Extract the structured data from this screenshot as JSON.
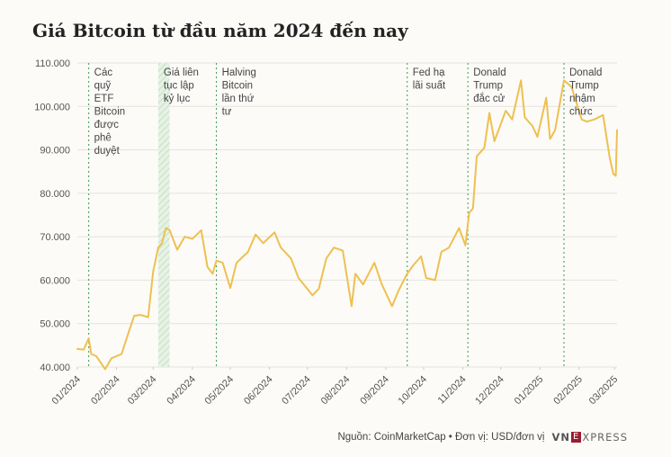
{
  "chart_data": {
    "type": "line",
    "title": "Giá Bitcoin từ đầu năm 2024 đến nay",
    "source": "Nguồn: CoinMarketCap • Đơn vị: USD/đơn vị",
    "xlabel": "",
    "ylabel": "",
    "ylim": [
      40000,
      110000
    ],
    "yticks": [
      "40.000",
      "50.000",
      "60.000",
      "70.000",
      "80.000",
      "90.000",
      "100.000",
      "110.000"
    ],
    "ytick_values": [
      40000,
      50000,
      60000,
      70000,
      80000,
      90000,
      100000,
      110000
    ],
    "xlim": [
      "2024-01-01",
      "2025-03-03"
    ],
    "xticks": [
      "01/2024",
      "02/2024",
      "03/2024",
      "04/2024",
      "05/2024",
      "06/2024",
      "07/2024",
      "08/2024",
      "09/2024",
      "10/2024",
      "11/2024",
      "12/2024",
      "01/2025",
      "02/2025",
      "03/2025"
    ],
    "xtick_dates": [
      "2024-01-01",
      "2024-02-01",
      "2024-03-01",
      "2024-04-01",
      "2024-05-01",
      "2024-06-01",
      "2024-07-01",
      "2024-08-01",
      "2024-09-01",
      "2024-10-01",
      "2024-11-01",
      "2024-12-01",
      "2025-01-01",
      "2025-02-01",
      "2025-03-01"
    ],
    "grid": true,
    "line_color": "#eec050",
    "annotation_color": "#3c9a4a",
    "series": [
      {
        "x": [
          "2024-01-01",
          "2024-01-06",
          "2024-01-10",
          "2024-01-12",
          "2024-01-16",
          "2024-01-23",
          "2024-01-28",
          "2024-02-05",
          "2024-02-10",
          "2024-02-15",
          "2024-02-20",
          "2024-02-26",
          "2024-03-01",
          "2024-03-05",
          "2024-03-08",
          "2024-03-11",
          "2024-03-14",
          "2024-03-20",
          "2024-03-26",
          "2024-04-01",
          "2024-04-08",
          "2024-04-13",
          "2024-04-17",
          "2024-04-20",
          "2024-04-25",
          "2024-05-01",
          "2024-05-06",
          "2024-05-15",
          "2024-05-21",
          "2024-05-27",
          "2024-06-05",
          "2024-06-10",
          "2024-06-18",
          "2024-06-24",
          "2024-07-05",
          "2024-07-10",
          "2024-07-16",
          "2024-07-22",
          "2024-07-29",
          "2024-08-05",
          "2024-08-08",
          "2024-08-14",
          "2024-08-23",
          "2024-08-29",
          "2024-09-06",
          "2024-09-11",
          "2024-09-18",
          "2024-09-23",
          "2024-09-29",
          "2024-10-03",
          "2024-10-10",
          "2024-10-15",
          "2024-10-21",
          "2024-10-29",
          "2024-11-03",
          "2024-11-06",
          "2024-11-09",
          "2024-11-12",
          "2024-11-18",
          "2024-11-22",
          "2024-11-26",
          "2024-12-05",
          "2024-12-10",
          "2024-12-17",
          "2024-12-20",
          "2024-12-26",
          "2024-12-30",
          "2025-01-06",
          "2025-01-09",
          "2025-01-13",
          "2025-01-20",
          "2025-01-26",
          "2025-02-03",
          "2025-02-07",
          "2025-02-13",
          "2025-02-20",
          "2025-02-25",
          "2025-02-28",
          "2025-03-02",
          "2025-03-03"
        ],
        "values": [
          44200,
          44000,
          46600,
          43000,
          42500,
          39500,
          42000,
          43000,
          47500,
          51800,
          52000,
          51500,
          62000,
          67500,
          68500,
          72000,
          71500,
          67000,
          70000,
          69500,
          71500,
          63000,
          61500,
          64500,
          64000,
          58200,
          64000,
          66500,
          70500,
          68500,
          71000,
          67500,
          65000,
          60500,
          56500,
          58000,
          65000,
          67500,
          66800,
          54000,
          61500,
          59000,
          64000,
          59000,
          54000,
          57500,
          61500,
          63500,
          65500,
          60500,
          60000,
          66500,
          67500,
          72000,
          68000,
          75500,
          76500,
          88500,
          90500,
          98500,
          92000,
          99000,
          97000,
          106000,
          97500,
          95500,
          93000,
          102000,
          92500,
          94500,
          106000,
          104500,
          97000,
          96500,
          97000,
          98000,
          88500,
          84500,
          84000,
          94500
        ]
      }
    ],
    "shaded_period": {
      "start": "2024-03-05",
      "end": "2024-03-14"
    },
    "annotations": [
      {
        "date": "2024-01-10",
        "lines": [
          "Các",
          "quỹ",
          "ETF",
          "Bitcoin",
          "được",
          "phê",
          "duyệt"
        ]
      },
      {
        "date": "2024-03-05",
        "lines": [
          "Giá liên",
          "tục lập",
          "kỷ lục"
        ]
      },
      {
        "date": "2024-04-20",
        "lines": [
          "Halving",
          "Bitcoin",
          "lần thứ",
          "tư"
        ]
      },
      {
        "date": "2024-09-18",
        "lines": [
          "Fed hạ",
          "lãi suất"
        ]
      },
      {
        "date": "2024-11-05",
        "lines": [
          "Donald",
          "Trump",
          "đắc cử"
        ]
      },
      {
        "date": "2025-01-20",
        "lines": [
          "Donald",
          "Trump",
          "nhậm",
          "chức"
        ]
      }
    ]
  },
  "branding": {
    "logo_left": "VN",
    "logo_mid": "E",
    "logo_right": "XPRESS"
  }
}
